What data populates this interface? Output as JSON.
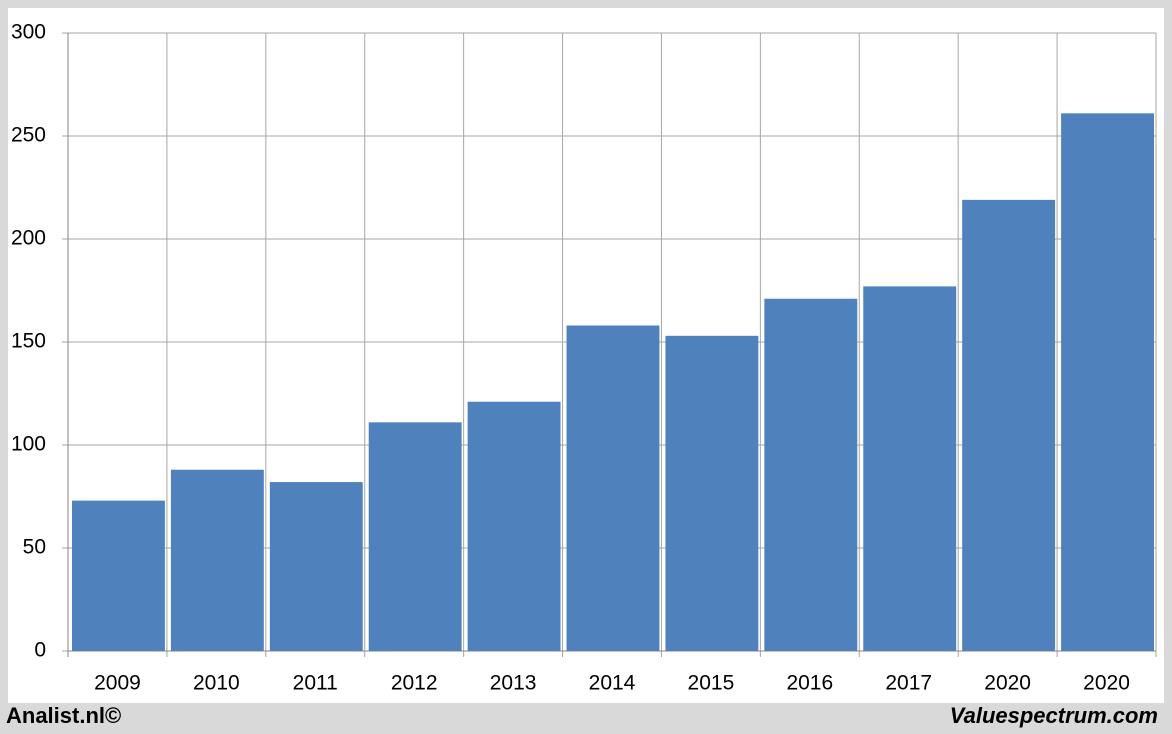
{
  "chart_data": {
    "type": "bar",
    "categories": [
      "2009",
      "2010",
      "2011",
      "2012",
      "2013",
      "2014",
      "2015",
      "2016",
      "2017",
      "2020",
      "2020"
    ],
    "values": [
      73,
      88,
      82,
      111,
      121,
      158,
      153,
      171,
      177,
      219,
      261
    ],
    "color": "#4f81bd",
    "ylim": [
      0,
      300
    ],
    "yticks": [
      0,
      50,
      100,
      150,
      200,
      250,
      300
    ],
    "grid": true,
    "credits": [
      "Analist.nl©",
      "Valuespectrum.com"
    ]
  }
}
